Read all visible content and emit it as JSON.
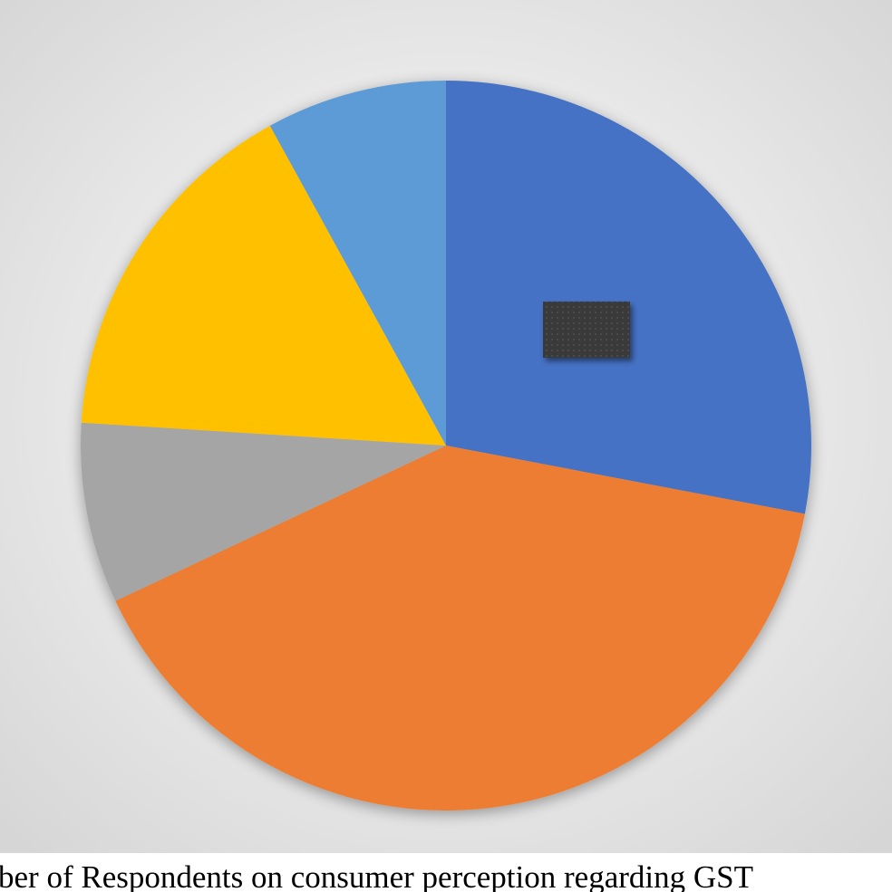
{
  "chart_data": {
    "type": "pie",
    "caption": "ber of Respondents on consumer perception regarding GST",
    "values": [
      28,
      40,
      8,
      16,
      8
    ],
    "colors": [
      "#4472c4",
      "#ed7d31",
      "#a5a5a5",
      "#ffc000",
      "#5b9bd5"
    ]
  }
}
